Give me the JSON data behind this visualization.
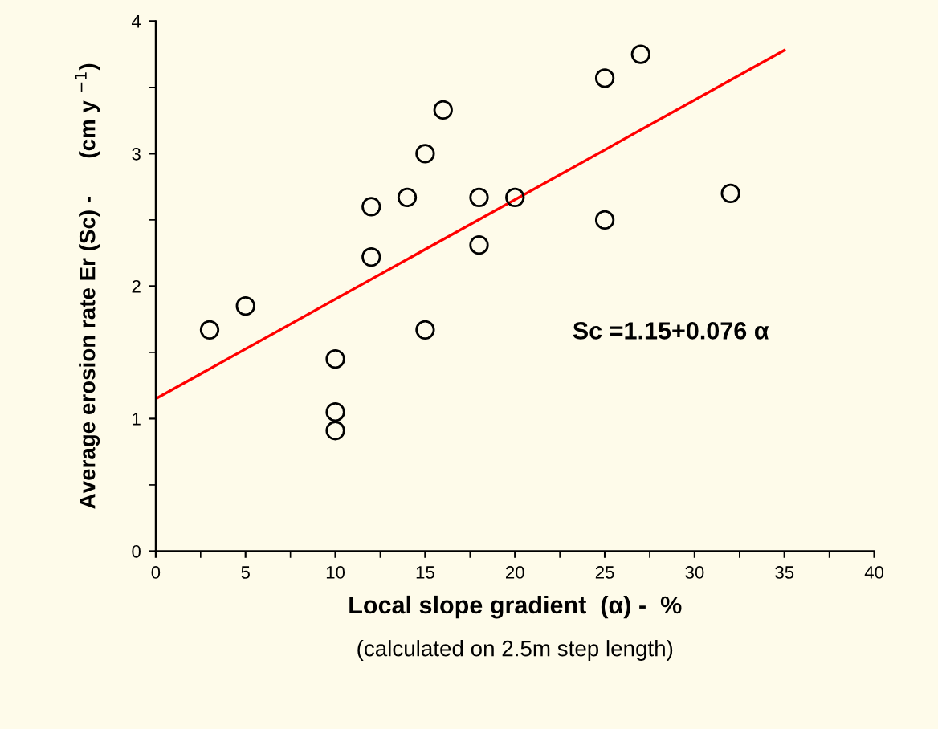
{
  "chart_data": {
    "type": "scatter",
    "xlabel": "Local slope gradient  (α) -  %",
    "subtitle": "(calculated on 2.5m step length)",
    "ylabel": "Average erosion rate Er (Sc) -      (cm y $^{−1}$)",
    "xlim": [
      0,
      40
    ],
    "xticks": [
      0,
      5,
      10,
      15,
      20,
      25,
      30,
      35,
      40
    ],
    "ylim": [
      0,
      4
    ],
    "yticks": [
      0,
      1,
      2,
      3,
      4
    ],
    "grid": false,
    "legend": false,
    "series": [
      {
        "marker": "circle",
        "color": "#000000",
        "x": [
          3,
          5,
          10,
          10,
          10,
          12,
          12,
          14,
          15,
          15,
          16,
          18,
          18,
          20,
          25,
          25,
          27,
          32
        ],
        "values": [
          1.67,
          1.85,
          1.45,
          1.05,
          0.91,
          2.6,
          2.22,
          2.67,
          3.0,
          1.67,
          3.33,
          2.67,
          2.31,
          2.67,
          3.57,
          2.5,
          3.75,
          2.7
        ]
      },
      {
        "type": "line",
        "color": "#ff0000",
        "x": [
          0,
          35
        ],
        "values": [
          1.15,
          3.78
        ]
      }
    ],
    "annotations": [
      "Sc =1.15+0.076 α"
    ]
  }
}
